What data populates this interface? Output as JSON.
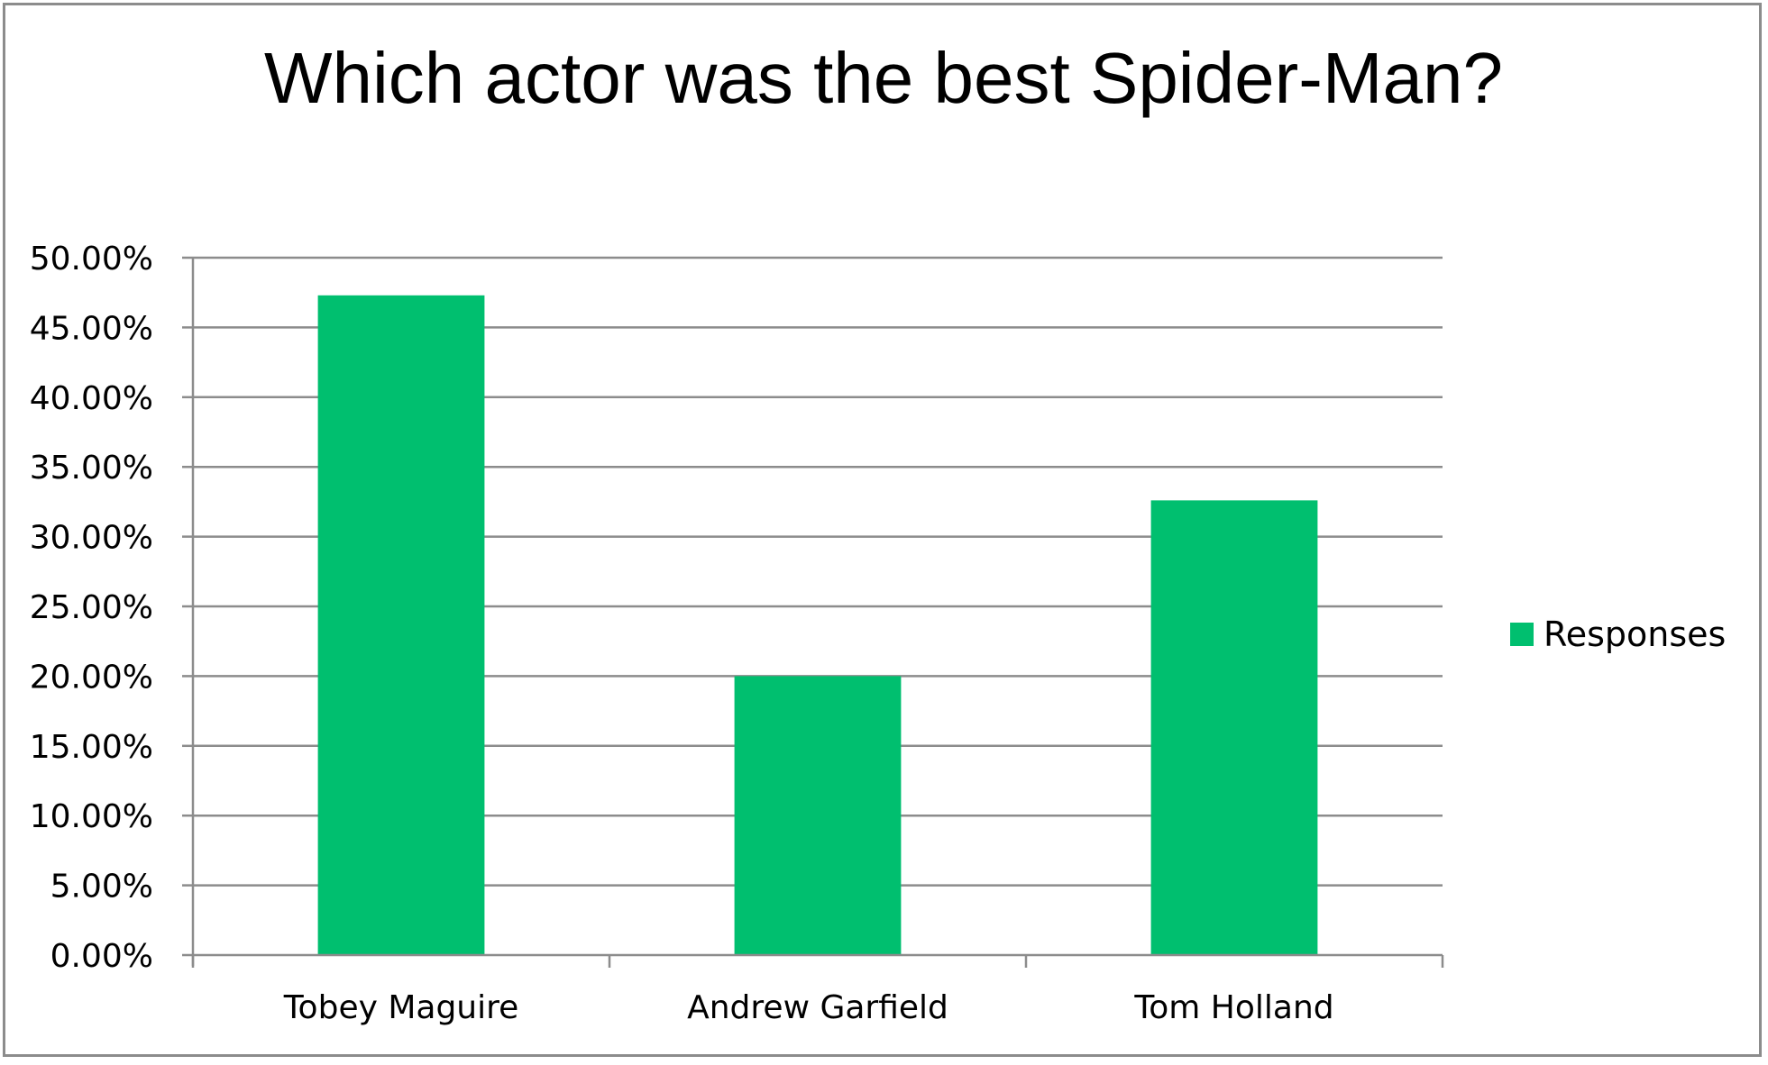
{
  "chart_data": {
    "type": "bar",
    "title": "Which actor was the best Spider-Man?",
    "categories": [
      "Tobey Maguire",
      "Andrew Garfield",
      "Tom Holland"
    ],
    "series": [
      {
        "name": "Responses",
        "color": "#00bf6f",
        "values": [
          47.3,
          20.0,
          32.6
        ]
      }
    ],
    "y_ticks": [
      "0.00%",
      "5.00%",
      "10.00%",
      "15.00%",
      "20.00%",
      "25.00%",
      "30.00%",
      "35.00%",
      "40.00%",
      "45.00%",
      "50.00%"
    ],
    "ylim": [
      0,
      50
    ],
    "y_unit": "%",
    "grid": true,
    "grid_color": "#8c8c8c",
    "legend_position": "right"
  }
}
